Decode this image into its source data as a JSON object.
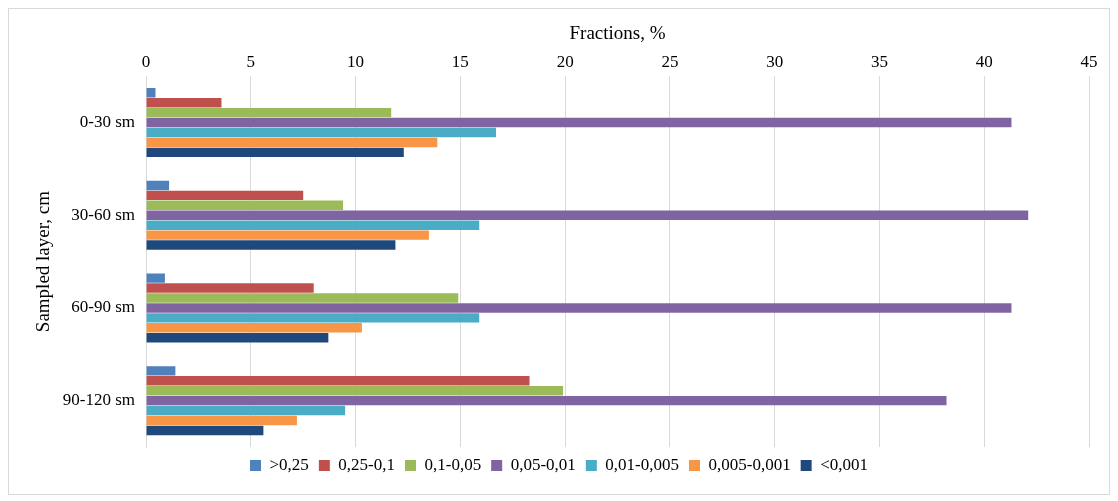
{
  "chart_data": {
    "type": "bar",
    "orientation": "horizontal",
    "xlabel": "Fractions, %",
    "ylabel": "Sampled layer, cm",
    "categories": [
      "0-30 sm",
      "30-60 sm",
      "60-90 sm",
      "90-120 sm"
    ],
    "series": [
      {
        "name": ">0,25",
        "color": "#4f81bd",
        "values": [
          0.45,
          1.1,
          0.9,
          1.4
        ]
      },
      {
        "name": "0,25-0,1",
        "color": "#c0504d",
        "values": [
          3.6,
          7.5,
          8.0,
          18.3
        ]
      },
      {
        "name": "0,1-0,05",
        "color": "#9bbb59",
        "values": [
          11.7,
          9.4,
          14.9,
          19.9
        ]
      },
      {
        "name": "0,05-0,01",
        "color": "#8064a2",
        "values": [
          41.3,
          42.1,
          41.3,
          38.2
        ]
      },
      {
        "name": "0,01-0,005",
        "color": "#4bacc6",
        "values": [
          16.7,
          15.9,
          15.9,
          9.5
        ]
      },
      {
        "name": "0,005-0,001",
        "color": "#f79646",
        "values": [
          13.9,
          13.5,
          10.3,
          7.2
        ]
      },
      {
        "name": "<0,001",
        "color": "#1f497d",
        "values": [
          12.3,
          11.9,
          8.7,
          5.6
        ]
      }
    ],
    "xlim": [
      0,
      45
    ],
    "xticks": [
      0,
      5,
      10,
      15,
      20,
      25,
      30,
      35,
      40,
      45
    ],
    "grid": "x",
    "legend": "bottom"
  }
}
